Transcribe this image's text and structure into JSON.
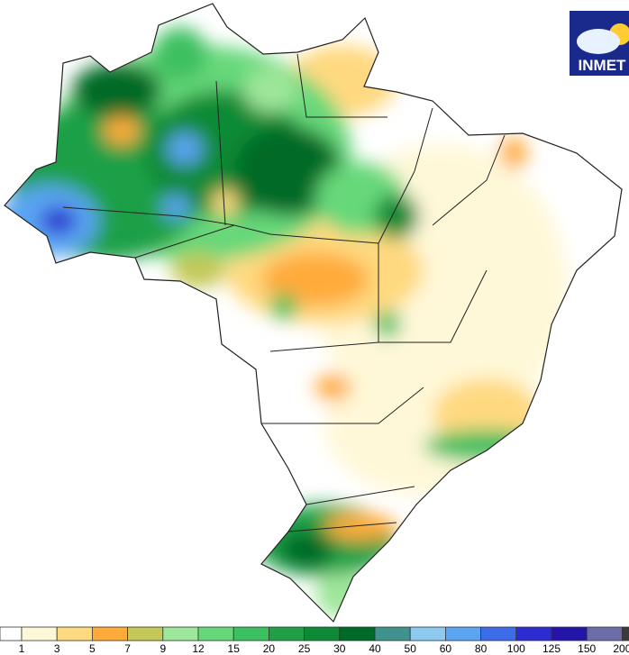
{
  "logo": {
    "text": "INMET"
  },
  "legend": {
    "labels": [
      1,
      3,
      5,
      7,
      9,
      12,
      15,
      20,
      25,
      30,
      40,
      50,
      60,
      80,
      100,
      125,
      150,
      200
    ],
    "colors": [
      "#ffffff",
      "#fff8d8",
      "#ffd980",
      "#ffab3a",
      "#c4c858",
      "#9ee69a",
      "#66d87a",
      "#3cc060",
      "#1fa046",
      "#0c8a36",
      "#006b26",
      "#3f928e",
      "#8ccaf0",
      "#5aa4f2",
      "#3c6ce8",
      "#2c2cd0",
      "#2414a8",
      "#6e6ca8",
      "#3a3a3a"
    ]
  }
}
